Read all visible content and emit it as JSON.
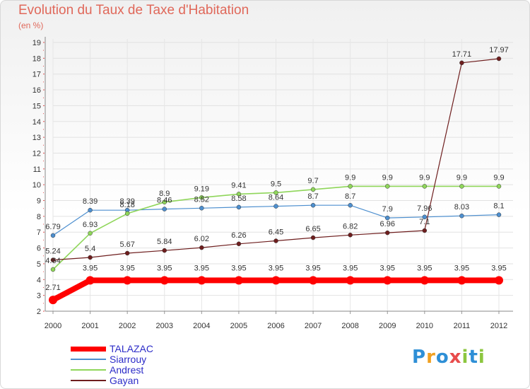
{
  "title": "Evolution du Taux de Taxe d'Habitation",
  "subtitle": "(en %)",
  "logo": "Proxiti",
  "colors": {
    "TALAZAC": "#ff0000",
    "Siarrouy": "#4d8fcf",
    "Andrest": "#8fd65a",
    "Gayan": "#6e1e1e"
  },
  "chart_data": {
    "type": "line",
    "x": [
      "2000",
      "2001",
      "2002",
      "2003",
      "2004",
      "2005",
      "2006",
      "2007",
      "2008",
      "2009",
      "2010",
      "2011",
      "2012"
    ],
    "ylim": [
      2,
      19
    ],
    "yticks": [
      "2",
      "3",
      "4",
      "5",
      "6",
      "7",
      "8",
      "9",
      "10",
      "11",
      "12",
      "13",
      "14",
      "15",
      "16",
      "17",
      "18",
      "19"
    ],
    "grid": true,
    "legend_position": "bottom-left",
    "series": [
      {
        "name": "TALAZAC",
        "values": [
          2.71,
          3.95,
          3.95,
          3.95,
          3.95,
          3.95,
          3.95,
          3.95,
          3.95,
          3.95,
          3.95,
          3.95,
          3.95
        ],
        "labels": [
          "2.71",
          "3.95",
          "3.95",
          "3.95",
          "3.95",
          "3.95",
          "3.95",
          "3.95",
          "3.95",
          "3.95",
          "3.95",
          "3.95",
          "3.95"
        ]
      },
      {
        "name": "Siarrouy",
        "values": [
          6.79,
          8.39,
          8.39,
          8.46,
          8.52,
          8.58,
          8.64,
          8.7,
          8.7,
          7.9,
          7.96,
          8.03,
          8.1
        ],
        "labels": [
          "6.79",
          "8.39",
          "8.39",
          "8.46",
          "8.52",
          "8.58",
          "8.64",
          "8.7",
          "8.7",
          "7.9",
          "7.96",
          "8.03",
          "8.1"
        ]
      },
      {
        "name": "Andrest",
        "values": [
          4.64,
          6.93,
          8.18,
          8.9,
          9.19,
          9.41,
          9.5,
          9.7,
          9.9,
          9.9,
          9.9,
          9.9,
          9.9
        ],
        "labels": [
          "4.64",
          "6.93",
          "8.18",
          "8.9",
          "9.19",
          "9.41",
          "9.5",
          "9.7",
          "9.9",
          "9.9",
          "9.9",
          "9.9",
          "9.9"
        ]
      },
      {
        "name": "Gayan",
        "values": [
          5.24,
          5.4,
          5.67,
          5.84,
          6.02,
          6.26,
          6.45,
          6.65,
          6.82,
          6.96,
          7.1,
          17.71,
          17.97
        ],
        "labels": [
          "5.24",
          "5.4",
          "5.67",
          "5.84",
          "6.02",
          "6.26",
          "6.45",
          "6.65",
          "6.82",
          "6.96",
          "7.1",
          "17.71",
          "17.97"
        ]
      }
    ]
  }
}
